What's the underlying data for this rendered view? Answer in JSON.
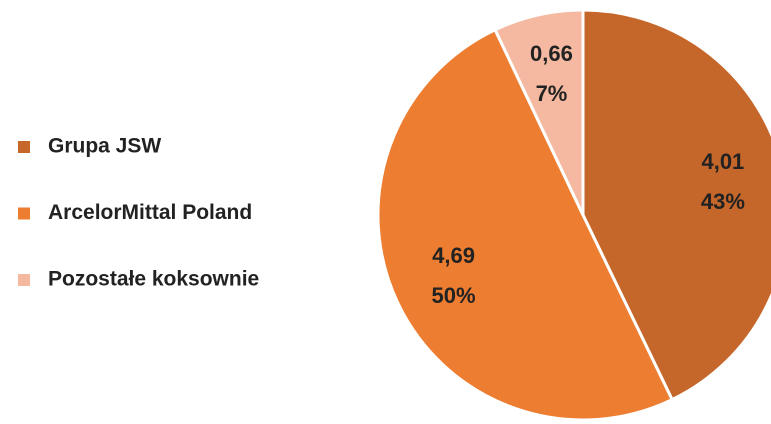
{
  "chart_data": {
    "type": "pie",
    "categories": [
      "Grupa JSW",
      "ArcelorMittal Poland",
      "Pozostałe koksownie"
    ],
    "values": [
      4.01,
      4.69,
      0.66
    ],
    "value_labels": [
      "4,01",
      "4,69",
      "0,66"
    ],
    "percentages": [
      43,
      50,
      7
    ],
    "percentage_labels": [
      "43%",
      "50%",
      "7%"
    ],
    "colors": [
      "#c5662a",
      "#ed7d31",
      "#f4b9a0"
    ],
    "legend": "left"
  }
}
